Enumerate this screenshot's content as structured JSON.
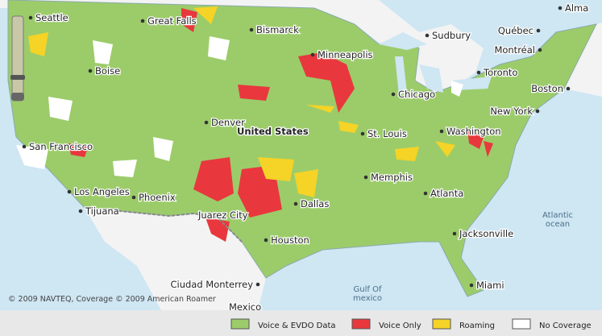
{
  "map": {
    "labels": [
      "Seattle",
      "Great Falls",
      "Alma",
      "Bismarck",
      "Sudbury",
      "Québec",
      "Montréal",
      "Minneapolis",
      "Boise",
      "Toronto",
      "Boston",
      "Chicago",
      "New York",
      "Denver",
      "United States",
      "St. Louis",
      "Washington",
      "San Francisco",
      "Memphis",
      "Los Angeles",
      "Phoenix",
      "Atlanta",
      "Dallas",
      "Tijuana",
      "Juarez City",
      "Jacksonville",
      "Houston",
      "Miami",
      "Ciudad Monterrey",
      "Mexico"
    ],
    "water_labels": [
      [
        "Atlantic",
        "ocean"
      ],
      [
        "Gulf Of",
        "mexico"
      ]
    ],
    "copyright": "© 2009 NAVTEQ, Coverage © 2009 American Roamer",
    "legend": [
      {
        "label": "Voice & EVDO Data",
        "color": "#9ccc6a"
      },
      {
        "label": "Voice Only",
        "color": "#e8383d"
      },
      {
        "label": "Roaming",
        "color": "#f5d327"
      },
      {
        "label": "No Coverage",
        "color": "#ffffff"
      }
    ]
  }
}
